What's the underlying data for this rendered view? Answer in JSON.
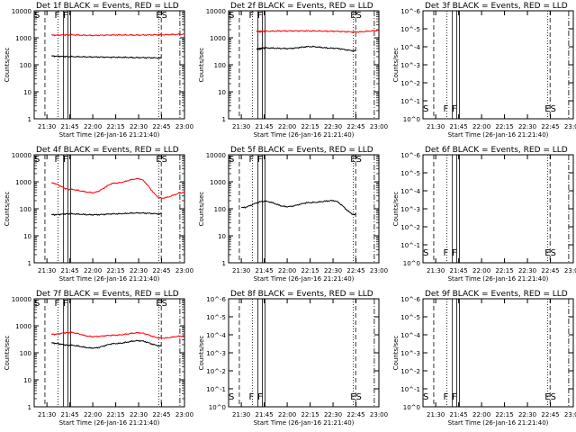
{
  "figure": {
    "panel_titles": [
      "Det 1f BLACK = Events, RED = LLD",
      "Det 2f BLACK = Events, RED = LLD",
      "Det 3f BLACK = Events, RED = LLD",
      "Det 4f BLACK = Events, RED = LLD",
      "Det 5f BLACK = Events, RED = LLD",
      "Det 6f BLACK = Events, RED = LLD",
      "Det 7f BLACK = Events, RED = LLD",
      "Det 8f BLACK = Events, RED = LLD",
      "Det 9f BLACK = Events, RED = LLD"
    ],
    "xlabel": "Start Time (26-Jan-16 21:21:40)",
    "ylabel": "Counts/sec",
    "xtick_labels": [
      "21:30",
      "21:45",
      "22:00",
      "22:15",
      "22:30",
      "22:45",
      "23:00"
    ],
    "ytick_labels_decades": [
      "1",
      "10",
      "100",
      "1000",
      "10000"
    ],
    "ytick_labels_tiny": [
      "10^0",
      "10^-1",
      "10^-2",
      "10^-3",
      "10^-4",
      "10^-5",
      "10^-6"
    ],
    "flag_labels": [
      "S",
      "F",
      "F",
      "ES"
    ],
    "colors": {
      "events": "#000000",
      "lld": "#ff0000",
      "axes": "#000000"
    }
  },
  "chart_data": [
    {
      "type": "line",
      "title": "Det 1f BLACK = Events, RED = LLD",
      "yscale": "log",
      "xlabel": "Start Time (26-Jan-16 21:21:40)",
      "ylabel": "Counts/sec",
      "x_minutes_range": [
        21.33,
        48.33
      ],
      "ylim": [
        1,
        10000
      ],
      "series": [
        {
          "name": "Events",
          "x": [
            "21:33",
            "21:45",
            "22:00",
            "22:15",
            "22:30",
            "22:45"
          ],
          "values": [
            210,
            200,
            195,
            190,
            185,
            180
          ]
        },
        {
          "name": "LLD",
          "x": [
            "21:33",
            "21:45",
            "22:00",
            "22:15",
            "22:30",
            "22:45",
            "23:00"
          ],
          "values": [
            1250,
            1280,
            1230,
            1270,
            1260,
            1300,
            1350
          ]
        }
      ]
    },
    {
      "type": "line",
      "title": "Det 2f BLACK = Events, RED = LLD",
      "yscale": "log",
      "xlabel": "Start Time (26-Jan-16 21:21:40)",
      "ylabel": "Counts/sec",
      "ylim": [
        1,
        10000
      ],
      "series": [
        {
          "name": "Events",
          "x": [
            "21:40",
            "21:45",
            "22:00",
            "22:15",
            "22:30",
            "22:45"
          ],
          "values": [
            380,
            420,
            400,
            470,
            410,
            330
          ]
        },
        {
          "name": "LLD",
          "x": [
            "21:40",
            "21:45",
            "22:00",
            "22:15",
            "22:30",
            "22:45",
            "23:00"
          ],
          "values": [
            1700,
            1750,
            1800,
            1800,
            1750,
            1650,
            1850
          ]
        }
      ]
    },
    {
      "type": "line",
      "title": "Det 3f BLACK = Events, RED = LLD",
      "yscale": "log",
      "xlabel": "Start Time (26-Jan-16 21:21:40)",
      "ylabel": "Counts/sec",
      "ylim": [
        1,
        1e-06
      ],
      "series": []
    },
    {
      "type": "line",
      "title": "Det 4f BLACK = Events, RED = LLD",
      "yscale": "log",
      "xlabel": "Start Time (26-Jan-16 21:21:40)",
      "ylabel": "Counts/sec",
      "ylim": [
        1,
        10000
      ],
      "series": [
        {
          "name": "Events",
          "x": [
            "21:33",
            "21:45",
            "22:00",
            "22:15",
            "22:30",
            "22:45"
          ],
          "values": [
            60,
            65,
            60,
            65,
            70,
            65
          ]
        },
        {
          "name": "LLD",
          "x": [
            "21:33",
            "21:45",
            "22:00",
            "22:15",
            "22:30",
            "22:45",
            "23:00"
          ],
          "values": [
            900,
            520,
            400,
            900,
            1300,
            250,
            400
          ]
        }
      ]
    },
    {
      "type": "line",
      "title": "Det 5f BLACK = Events, RED = LLD",
      "yscale": "log",
      "xlabel": "Start Time (26-Jan-16 21:21:40)",
      "ylabel": "Counts/sec",
      "ylim": [
        1,
        10000
      ],
      "series": [
        {
          "name": "Events",
          "x": [
            "21:30",
            "21:45",
            "22:00",
            "22:15",
            "22:30",
            "22:45"
          ],
          "values": [
            110,
            190,
            120,
            170,
            200,
            60
          ]
        }
      ]
    },
    {
      "type": "line",
      "title": "Det 6f BLACK = Events, RED = LLD",
      "yscale": "log",
      "xlabel": "Start Time (26-Jan-16 21:21:40)",
      "ylabel": "Counts/sec",
      "ylim": [
        1,
        1e-06
      ],
      "series": []
    },
    {
      "type": "line",
      "title": "Det 7f BLACK = Events, RED = LLD",
      "yscale": "log",
      "xlabel": "Start Time (26-Jan-16 21:21:40)",
      "ylabel": "Counts/sec",
      "ylim": [
        1,
        10000
      ],
      "series": [
        {
          "name": "Events",
          "x": [
            "21:33",
            "21:45",
            "22:00",
            "22:15",
            "22:30",
            "22:45"
          ],
          "values": [
            230,
            190,
            150,
            220,
            280,
            180
          ]
        },
        {
          "name": "LLD",
          "x": [
            "21:33",
            "21:45",
            "22:00",
            "22:15",
            "22:30",
            "22:45",
            "23:00"
          ],
          "values": [
            480,
            560,
            400,
            450,
            550,
            350,
            420
          ]
        }
      ]
    },
    {
      "type": "line",
      "title": "Det 8f BLACK = Events, RED = LLD",
      "yscale": "log",
      "xlabel": "Start Time (26-Jan-16 21:21:40)",
      "ylabel": "Counts/sec",
      "ylim": [
        1,
        1e-06
      ],
      "series": []
    },
    {
      "type": "line",
      "title": "Det 9f BLACK = Events, RED = LLD",
      "yscale": "log",
      "xlabel": "Start Time (26-Jan-16 21:21:40)",
      "ylabel": "Counts/sec",
      "ylim": [
        1,
        1e-06
      ],
      "series": []
    }
  ]
}
